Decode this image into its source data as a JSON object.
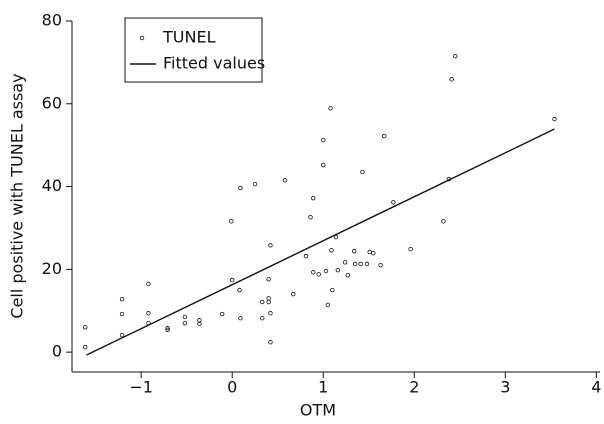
{
  "chart_data": {
    "type": "scatter",
    "x_label": "OTM",
    "y_label": "Cell positive with TUNEL assay",
    "xlim": [
      -1.76,
      4.04
    ],
    "ylim": [
      -4.8,
      80
    ],
    "xticks": [
      {
        "value": -1,
        "label": "−1"
      },
      0,
      1,
      2,
      3,
      4
    ],
    "yticks": [
      0,
      20,
      40,
      60,
      80
    ],
    "legend": "top-left",
    "series": [
      {
        "name": "TUNEL",
        "type": "scatter",
        "color": "#111111",
        "x": [
          -1.615,
          -1.615,
          -1.21,
          -1.21,
          -1.21,
          -0.92,
          -0.92,
          -0.92,
          -0.71,
          -0.71,
          -0.52,
          -0.52,
          -0.36,
          -0.36,
          -0.11,
          -0.01,
          0.0,
          0.08,
          0.09,
          0.09,
          0.25,
          0.33,
          0.33,
          0.4,
          0.4,
          0.4,
          0.42,
          0.42,
          0.42,
          0.58,
          0.67,
          0.81,
          0.86,
          0.89,
          0.89,
          0.95,
          1.0,
          1.0,
          1.03,
          1.05,
          1.08,
          1.09,
          1.1,
          1.14,
          1.16,
          1.24,
          1.27,
          1.34,
          1.35,
          1.41,
          1.43,
          1.48,
          1.51,
          1.55,
          1.63,
          1.67,
          1.77,
          1.96,
          2.32,
          2.38,
          2.41,
          2.45,
          3.54
        ],
        "values": [
          6.0,
          1.2,
          12.8,
          9.2,
          4.1,
          16.5,
          9.4,
          7.0,
          5.8,
          5.4,
          8.5,
          7.0,
          7.7,
          6.8,
          9.2,
          31.6,
          17.4,
          15.0,
          39.6,
          8.2,
          40.6,
          12.1,
          8.2,
          17.6,
          13.0,
          12.1,
          25.8,
          9.4,
          2.4,
          41.5,
          14.0,
          23.2,
          32.6,
          37.2,
          19.3,
          18.8,
          51.2,
          45.2,
          19.6,
          11.4,
          58.9,
          24.6,
          15.0,
          27.8,
          19.8,
          21.7,
          18.6,
          24.4,
          21.3,
          21.3,
          43.5,
          21.3,
          24.2,
          23.9,
          21.0,
          52.2,
          36.2,
          24.9,
          31.6,
          41.8,
          65.9,
          71.5,
          56.3
        ]
      },
      {
        "name": "Fitted values",
        "type": "line",
        "color": "#111111",
        "x": [
          -1.6,
          3.54
        ],
        "values": [
          -0.7,
          53.9
        ]
      }
    ]
  }
}
